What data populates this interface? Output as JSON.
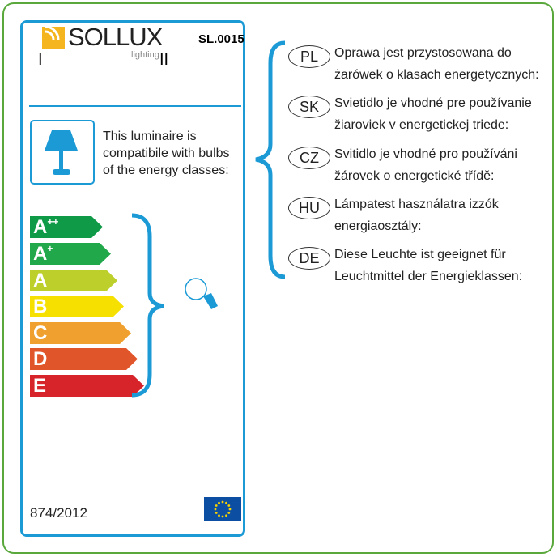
{
  "logo": {
    "brand": "SOLLUX",
    "sub": "lighting"
  },
  "code": "SL.0015",
  "marks": {
    "left": "I",
    "right": "II"
  },
  "compat_text": [
    "This luminaire is",
    "compatibile with bulbs",
    "of the energy classes:"
  ],
  "energy_classes": [
    {
      "letter": "A",
      "sup": "++",
      "color": "#0f9a48"
    },
    {
      "letter": "A",
      "sup": "+",
      "color": "#21a84a"
    },
    {
      "letter": "A",
      "sup": "",
      "color": "#bccf2a"
    },
    {
      "letter": "B",
      "sup": "",
      "color": "#f5e000"
    },
    {
      "letter": "C",
      "sup": "",
      "color": "#efa02e"
    },
    {
      "letter": "D",
      "sup": "",
      "color": "#e1552a"
    },
    {
      "letter": "E",
      "sup": "",
      "color": "#d7232a"
    }
  ],
  "regulation": "874/2012",
  "languages": [
    {
      "code": "PL",
      "lines": [
        "Oprawa jest przystosowana do",
        "żarówek o klasach energetycznych:"
      ]
    },
    {
      "code": "SK",
      "lines": [
        "Svietidlo je vhodné pre používanie",
        "žiaroviek v energetickej triede:"
      ]
    },
    {
      "code": "CZ",
      "lines": [
        "Svitidlo je vhodné pro používáni",
        "žárovek o energetické třídě:"
      ]
    },
    {
      "code": "HU",
      "lines": [
        "Lámpatest használatra izzók",
        "energiaosztály:"
      ]
    },
    {
      "code": "DE",
      "lines": [
        "Diese Leuchte ist geeignet für",
        "Leuchtmittel der Energieklassen:"
      ]
    }
  ],
  "colors": {
    "accent": "#1b9ad6",
    "frame": "#5aa83c",
    "logo": "#f4b51e"
  }
}
